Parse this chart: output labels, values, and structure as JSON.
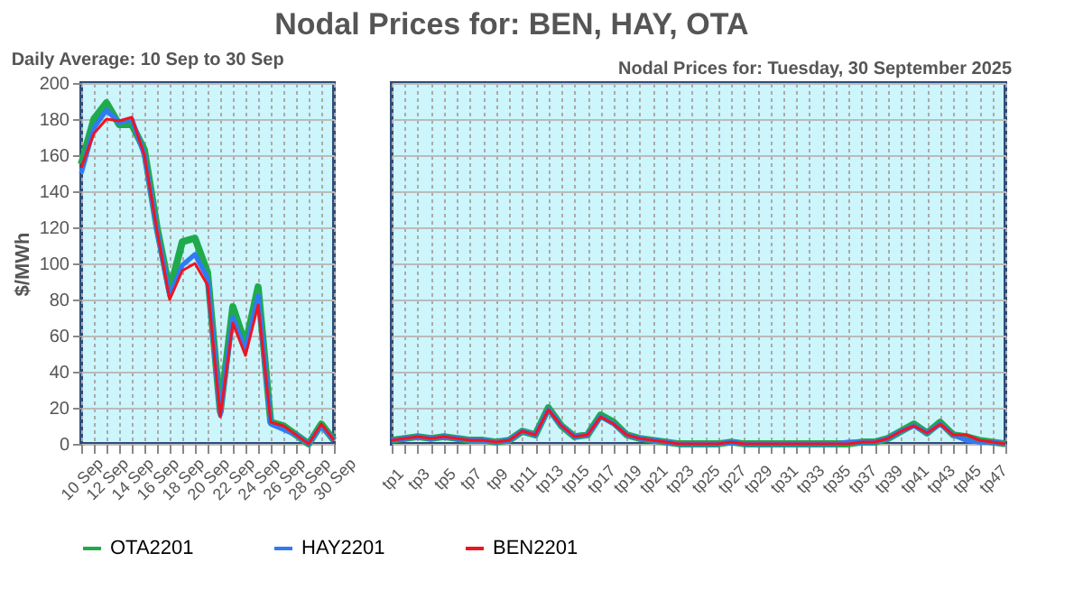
{
  "chart_data": [
    {
      "type": "line",
      "title": "Nodal Prices for: BEN, HAY, OTA",
      "subtitle": "Daily Average: 10 Sep to 30 Sep",
      "ylabel": "$/MWh",
      "categories": [
        "10 Sep",
        null,
        "12 Sep",
        null,
        "14 Sep",
        null,
        "16 Sep",
        null,
        "18 Sep",
        null,
        "20 Sep",
        null,
        "22 Sep",
        null,
        "24 Sep",
        null,
        "26 Sep",
        null,
        "28 Sep",
        null,
        "30 Sep"
      ],
      "ylim": [
        0,
        200
      ],
      "yticks": [
        0,
        20,
        40,
        60,
        80,
        100,
        120,
        140,
        160,
        180,
        200
      ],
      "grid": true,
      "legend": "bottom",
      "series": [
        {
          "name": "OTA2201",
          "color": "#1faa4b",
          "values": [
            155,
            180,
            189,
            177,
            177,
            163,
            120,
            85,
            112,
            114,
            95,
            18,
            76,
            55,
            87,
            12,
            10,
            5,
            0,
            11,
            2
          ]
        },
        {
          "name": "HAY2201",
          "color": "#2f7bf5",
          "values": [
            150,
            175,
            185,
            178,
            180,
            160,
            118,
            82,
            99,
            105,
            92,
            16,
            70,
            52,
            82,
            11,
            8,
            5,
            0,
            10,
            2
          ]
        },
        {
          "name": "BEN2201",
          "color": "#f0141e",
          "values": [
            153,
            172,
            180,
            179,
            181,
            160,
            118,
            80,
            96,
            100,
            88,
            15,
            67,
            49,
            77,
            12,
            10,
            5,
            0,
            11,
            2
          ]
        }
      ]
    },
    {
      "type": "line",
      "subtitle": "Nodal Prices for: Tuesday,  30 September  2025",
      "categories": [
        "tp1",
        null,
        "tp3",
        null,
        "tp5",
        null,
        "tp7",
        null,
        "tp9",
        null,
        "tp11",
        null,
        "tp13",
        null,
        "tp15",
        null,
        "tp17",
        null,
        "tp19",
        null,
        "tp21",
        null,
        "tp23",
        null,
        "tp25",
        null,
        "tp27",
        null,
        "tp29",
        null,
        "tp31",
        null,
        "tp33",
        null,
        "tp35",
        null,
        "tp37",
        null,
        "tp39",
        null,
        "tp41",
        null,
        "tp43",
        null,
        "tp45",
        null,
        "tp47",
        null
      ],
      "ylim": [
        0,
        200
      ],
      "yticks": [
        0,
        20,
        40,
        60,
        80,
        100,
        120,
        140,
        160,
        180,
        200
      ],
      "grid": true,
      "legend": "bottom",
      "tick_labels": "x",
      "series": [
        {
          "name": "OTA2201",
          "color": "#1faa4b",
          "values": [
            2,
            3,
            4,
            3,
            4,
            3,
            2,
            2,
            1,
            2,
            7,
            5,
            20,
            10,
            4,
            5,
            16,
            12,
            5,
            3,
            2,
            1,
            0,
            0,
            0,
            0,
            1,
            0,
            0,
            0,
            0,
            0,
            0,
            0,
            0,
            0,
            1,
            1,
            3,
            7,
            11,
            6,
            12,
            5,
            4,
            2,
            1,
            0
          ]
        },
        {
          "name": "HAY2201",
          "color": "#2f7bf5",
          "values": [
            2,
            3,
            4,
            3,
            4,
            3,
            2,
            2,
            1,
            2,
            7,
            5,
            19,
            10,
            4,
            5,
            15,
            11,
            5,
            3,
            2,
            1,
            0,
            0,
            0,
            0,
            1,
            0,
            0,
            0,
            0,
            0,
            0,
            0,
            0,
            1,
            1,
            1,
            3,
            7,
            10,
            6,
            11,
            5,
            2,
            1,
            1,
            0
          ]
        },
        {
          "name": "BEN2201",
          "color": "#f0141e",
          "values": [
            2,
            3,
            4,
            3,
            4,
            3,
            2,
            2,
            1,
            2,
            7,
            5,
            19,
            10,
            4,
            5,
            15,
            11,
            5,
            3,
            2,
            1,
            0,
            0,
            0,
            0,
            1,
            0,
            0,
            0,
            0,
            0,
            0,
            0,
            0,
            0,
            1,
            1,
            3,
            7,
            10,
            6,
            11,
            5,
            5,
            2,
            1,
            0
          ]
        }
      ]
    }
  ]
}
